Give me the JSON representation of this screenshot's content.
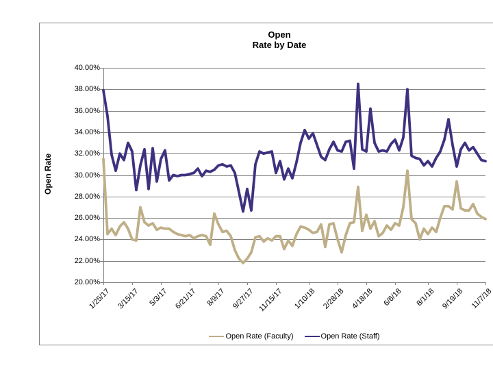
{
  "chart": {
    "title_line1": "Open",
    "title_line2": "Rate by Date",
    "y_axis_title": "Open Rate",
    "axis_color": "#808080",
    "background": "#ffffff"
  },
  "chart_data": {
    "type": "line",
    "title": "Open Rate by Date",
    "xlabel": "",
    "ylabel": "Open Rate",
    "ylim": [
      20,
      40
    ],
    "ytick_step": 2,
    "ytick_labels": [
      "40.00%",
      "38.00%",
      "36.00%",
      "34.00%",
      "32.00%",
      "30.00%",
      "28.00%",
      "26.00%",
      "24.00%",
      "22.00%",
      "20.00%"
    ],
    "grid": "horizontal",
    "legend_position": "bottom",
    "n_points": 94,
    "x_tick_labels": [
      "1/25/17",
      "3/15/17",
      "5/3/17",
      "6/21/17",
      "8/9/17",
      "9/27/17",
      "11/15/17",
      "1/10/18",
      "2/28/18",
      "4/18/18",
      "6/6/18",
      "8/1/18",
      "9/19/18",
      "11/7/18"
    ],
    "x_tick_indices": [
      0,
      7,
      14,
      21,
      28,
      35,
      42,
      50,
      57,
      64,
      71,
      79,
      86,
      93
    ],
    "series": [
      {
        "name": "Open Rate (Faculty)",
        "color": "#BFAF87",
        "values": [
          31.5,
          24.5,
          25.0,
          24.4,
          25.2,
          25.6,
          25.0,
          24.0,
          23.9,
          27.0,
          25.6,
          25.3,
          25.5,
          24.9,
          25.1,
          25.0,
          25.0,
          24.7,
          24.5,
          24.4,
          24.3,
          24.4,
          24.1,
          24.3,
          24.4,
          24.3,
          23.5,
          26.4,
          25.4,
          24.7,
          24.8,
          24.3,
          23.0,
          22.2,
          21.8,
          22.2,
          22.8,
          24.2,
          24.3,
          23.8,
          24.1,
          23.9,
          24.3,
          24.3,
          23.1,
          23.9,
          23.4,
          24.5,
          25.2,
          25.1,
          24.9,
          24.6,
          24.7,
          25.4,
          23.3,
          25.4,
          25.5,
          24.0,
          22.8,
          24.4,
          25.5,
          25.6,
          28.9,
          24.8,
          26.3,
          25.0,
          25.7,
          24.3,
          24.6,
          25.3,
          24.9,
          25.5,
          25.3,
          27.0,
          30.4,
          25.9,
          25.5,
          24.0,
          25.0,
          24.5,
          25.1,
          24.7,
          26.0,
          27.1,
          27.1,
          26.8,
          29.4,
          26.9,
          26.7,
          26.7,
          27.3,
          26.4,
          26.1,
          25.9
        ]
      },
      {
        "name": "Open Rate (Staff)",
        "color": "#3F3180",
        "values": [
          37.9,
          35.5,
          31.9,
          30.4,
          32.0,
          31.4,
          33.0,
          32.2,
          28.6,
          30.9,
          32.4,
          28.7,
          32.5,
          29.4,
          31.5,
          32.3,
          29.5,
          30.0,
          29.9,
          30.0,
          30.0,
          30.1,
          30.2,
          30.6,
          29.9,
          30.4,
          30.3,
          30.5,
          30.9,
          31.0,
          30.8,
          30.9,
          30.2,
          28.4,
          26.6,
          28.7,
          26.7,
          31.0,
          32.2,
          32.0,
          32.1,
          32.2,
          30.2,
          31.3,
          29.6,
          30.6,
          29.7,
          31.2,
          33.0,
          34.2,
          33.4,
          33.9,
          32.8,
          31.7,
          31.4,
          32.4,
          33.1,
          32.3,
          32.2,
          33.1,
          33.2,
          30.6,
          38.5,
          32.4,
          32.2,
          36.2,
          33.0,
          32.2,
          32.3,
          32.2,
          32.9,
          33.3,
          32.3,
          33.5,
          38.0,
          31.8,
          31.6,
          31.5,
          30.9,
          31.3,
          30.8,
          31.6,
          32.2,
          33.3,
          35.2,
          32.8,
          30.8,
          32.4,
          33.0,
          32.3,
          32.6,
          32.0,
          31.4,
          31.3
        ]
      }
    ]
  }
}
